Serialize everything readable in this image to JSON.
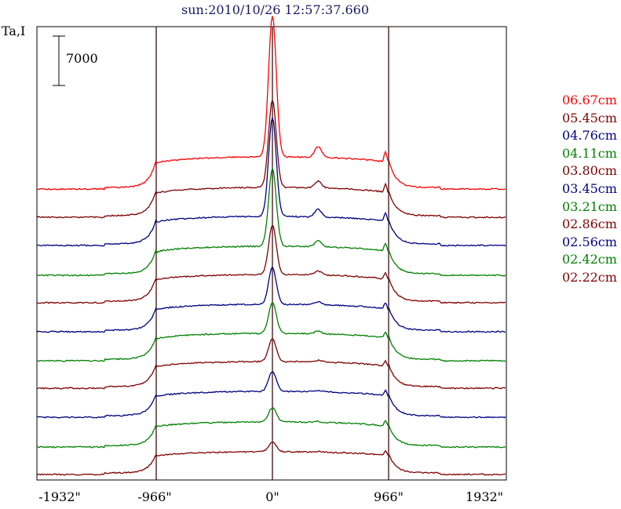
{
  "chart_data": {
    "type": "line",
    "title": "sun:2010/10/26 12:57:37.660",
    "ylabel": "Ta,I",
    "scale_bar_label": "7000",
    "x_ticks": [
      "-1932\"",
      "-966\"",
      "0\"",
      "966\"",
      "1932\""
    ],
    "x_tick_values": [
      -1932,
      -966,
      0,
      966,
      1932
    ],
    "xlim": [
      -1932,
      1932
    ],
    "vlines": [
      -966,
      0,
      966
    ],
    "series": [
      {
        "name": "06.67cm",
        "color": "#ff0000",
        "peak": 1.0
      },
      {
        "name": "05.45cm",
        "color": "#800000",
        "peak": 0.62
      },
      {
        "name": "04.76cm",
        "color": "#000080",
        "peak": 0.7
      },
      {
        "name": "04.11cm",
        "color": "#008000",
        "peak": 0.55
      },
      {
        "name": "03.80cm",
        "color": "#800000",
        "peak": 0.35
      },
      {
        "name": "03.45cm",
        "color": "#000080",
        "peak": 0.26
      },
      {
        "name": "03.21cm",
        "color": "#008000",
        "peak": 0.22
      },
      {
        "name": "02.86cm",
        "color": "#800000",
        "peak": 0.16
      },
      {
        "name": "02.56cm",
        "color": "#000080",
        "peak": 0.14
      },
      {
        "name": "02.42cm",
        "color": "#008000",
        "peak": 0.1
      },
      {
        "name": "02.22cm",
        "color": "#800000",
        "peak": 0.07
      }
    ]
  }
}
